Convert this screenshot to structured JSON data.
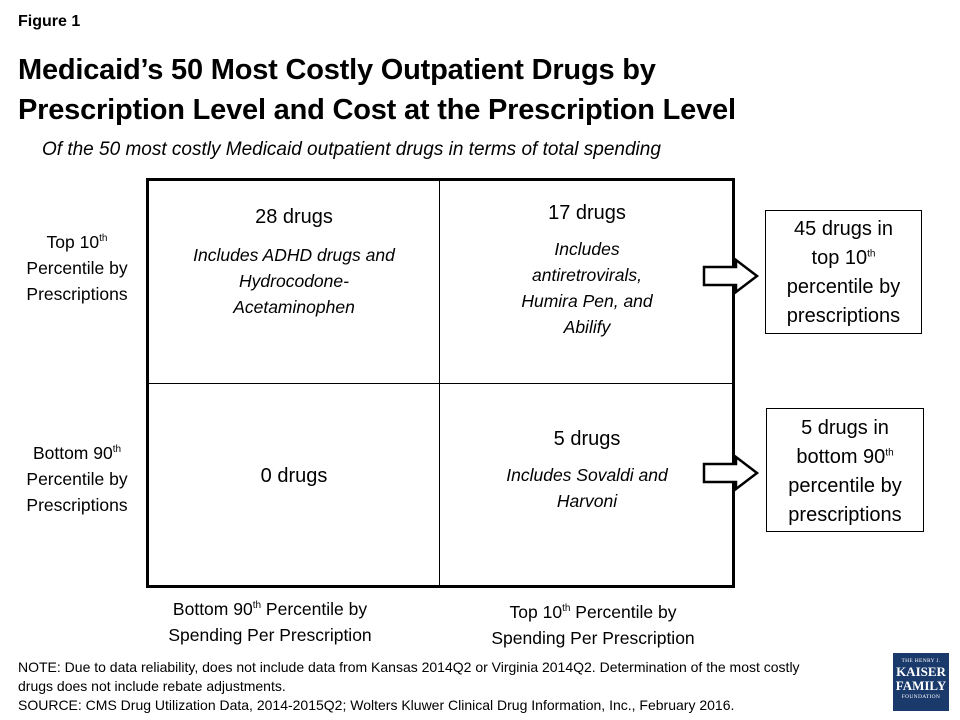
{
  "figure_label": "Figure 1",
  "title": {
    "line1": "Medicaid’s 50 Most Costly Outpatient Drugs by",
    "line2": "Prescription Level and Cost at the Prescription Level"
  },
  "subtitle": "Of the 50 most costly Medicaid outpatient drugs in terms of total spending",
  "rows": {
    "top": {
      "a": "Top 10",
      "sup": "th",
      "b": "Percentile by",
      "c": "Prescriptions"
    },
    "bottom": {
      "a": "Bottom 90",
      "sup": "th",
      "b": "Percentile by",
      "c": "Prescriptions"
    }
  },
  "columns": {
    "left": {
      "a": "Bottom 90",
      "sup": "th",
      "a2": " Percentile by",
      "b": "Spending Per Prescription"
    },
    "right": {
      "a": "Top 10",
      "sup": "th",
      "a2": " Percentile by",
      "b": "Spending Per Prescription"
    }
  },
  "cells": {
    "top_left": {
      "count": "28 drugs",
      "note1": "Includes ADHD drugs and",
      "note2": "Hydrocodone-",
      "note3": "Acetaminophen"
    },
    "top_right": {
      "count": "17 drugs",
      "note1": "Includes",
      "note2": "antiretrovirals,",
      "note3": "Humira Pen, and",
      "note4": "Abilify"
    },
    "bottom_left": {
      "count": "0 drugs"
    },
    "bottom_right": {
      "count": "5 drugs",
      "note1": "Includes Sovaldi and",
      "note2": "Harvoni"
    }
  },
  "summaries": {
    "top": {
      "l1": "45 drugs in",
      "l2a": "top 10",
      "l2sup": "th",
      "l3": "percentile by",
      "l4": "prescriptions"
    },
    "bottom": {
      "l1": "5 drugs in",
      "l2a": "bottom 90",
      "l2sup": "th",
      "l3": "percentile by",
      "l4": "prescriptions"
    }
  },
  "footer": {
    "note1": "NOTE: Due to data reliability, does not include data from Kansas 2014Q2 or Virginia 2014Q2. Determination of the most costly",
    "note2": "drugs does not include rebate adjustments.",
    "source": "SOURCE: CMS Drug Utilization Data, 2014-2015Q2; Wolters Kluwer Clinical Drug Information, Inc., February 2016."
  },
  "logo": {
    "l1": "THE HENRY J.",
    "l2": "KAISER",
    "l3": "FAMILY",
    "l4": "FOUNDATION"
  }
}
